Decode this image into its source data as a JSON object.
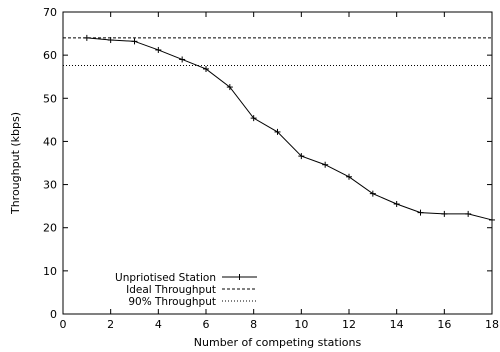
{
  "chart_data": {
    "type": "line",
    "xlabel": "Number of competing stations",
    "ylabel": "Throughput (kbps)",
    "xlim": [
      0,
      18
    ],
    "ylim": [
      0,
      70
    ],
    "xticks": [
      0,
      2,
      4,
      6,
      8,
      10,
      12,
      14,
      16,
      18
    ],
    "yticks": [
      0,
      10,
      20,
      30,
      40,
      50,
      60,
      70
    ],
    "grid": false,
    "legend_position": "bottom-left",
    "series": [
      {
        "name": "Unpriotised Station",
        "style": "solid-with-plus-markers",
        "x": [
          1,
          2,
          3,
          4,
          5,
          6,
          7,
          8,
          9,
          10,
          11,
          12,
          13,
          14,
          15,
          16,
          17,
          18
        ],
        "y": [
          64,
          63.5,
          63.2,
          61.2,
          59,
          56.8,
          52.6,
          45.4,
          42.2,
          36.6,
          34.6,
          31.8,
          27.9,
          25.5,
          23.5,
          23.2,
          23.2,
          21.8
        ]
      },
      {
        "name": "Ideal Throughput",
        "style": "dashed",
        "y": 64
      },
      {
        "name": "90% Throughput",
        "style": "dotted",
        "y": 57.6
      }
    ]
  }
}
